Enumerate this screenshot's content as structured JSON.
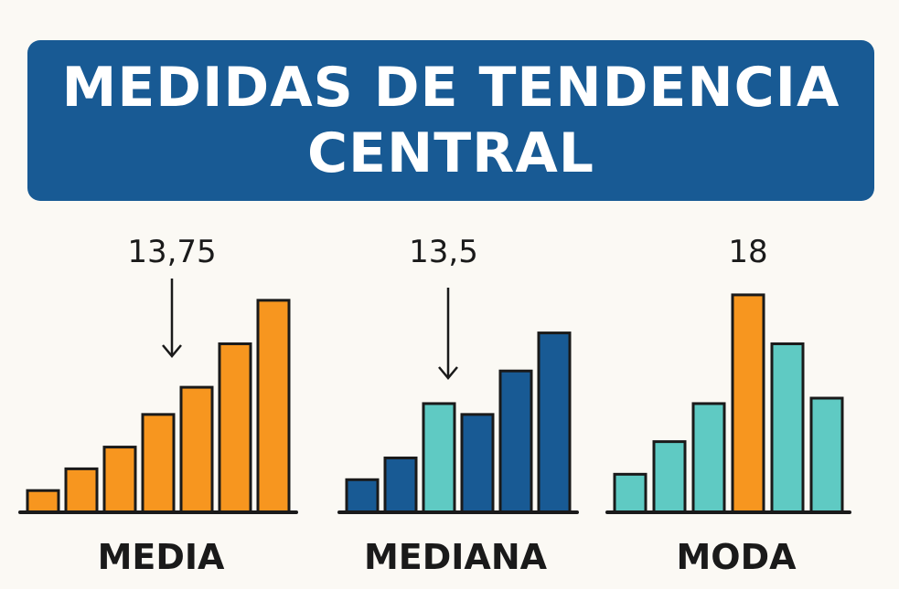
{
  "title": {
    "line1": "MEDIDAS DE TENDENCIA",
    "line2": "CENTRAL"
  },
  "colors": {
    "banner": "#185a94",
    "orange": "#f7961f",
    "navy": "#185a94",
    "teal": "#5fcac3",
    "outline": "#1a1a1a"
  },
  "chart_data": [
    {
      "type": "bar",
      "label": "MEDIA",
      "annotation": "13,75",
      "has_arrow": true,
      "values": [
        4,
        8,
        12,
        18,
        23,
        31,
        39
      ],
      "highlight_color": "orange",
      "bar_colors": [
        "orange",
        "orange",
        "orange",
        "orange",
        "orange",
        "orange",
        "orange"
      ],
      "ylim": [
        0,
        42
      ]
    },
    {
      "type": "bar",
      "label": "MEDIANA",
      "annotation": "13,5",
      "has_arrow": true,
      "values": [
        6,
        10,
        20,
        18,
        26,
        33
      ],
      "bar_colors": [
        "navy",
        "navy",
        "teal",
        "navy",
        "navy",
        "navy"
      ],
      "ylim": [
        0,
        42
      ]
    },
    {
      "type": "bar",
      "label": "MODA",
      "annotation": "18",
      "has_arrow": false,
      "values": [
        7,
        13,
        20,
        40,
        31,
        21
      ],
      "bar_colors": [
        "teal",
        "teal",
        "teal",
        "orange",
        "teal",
        "teal"
      ],
      "ylim": [
        0,
        42
      ]
    }
  ]
}
